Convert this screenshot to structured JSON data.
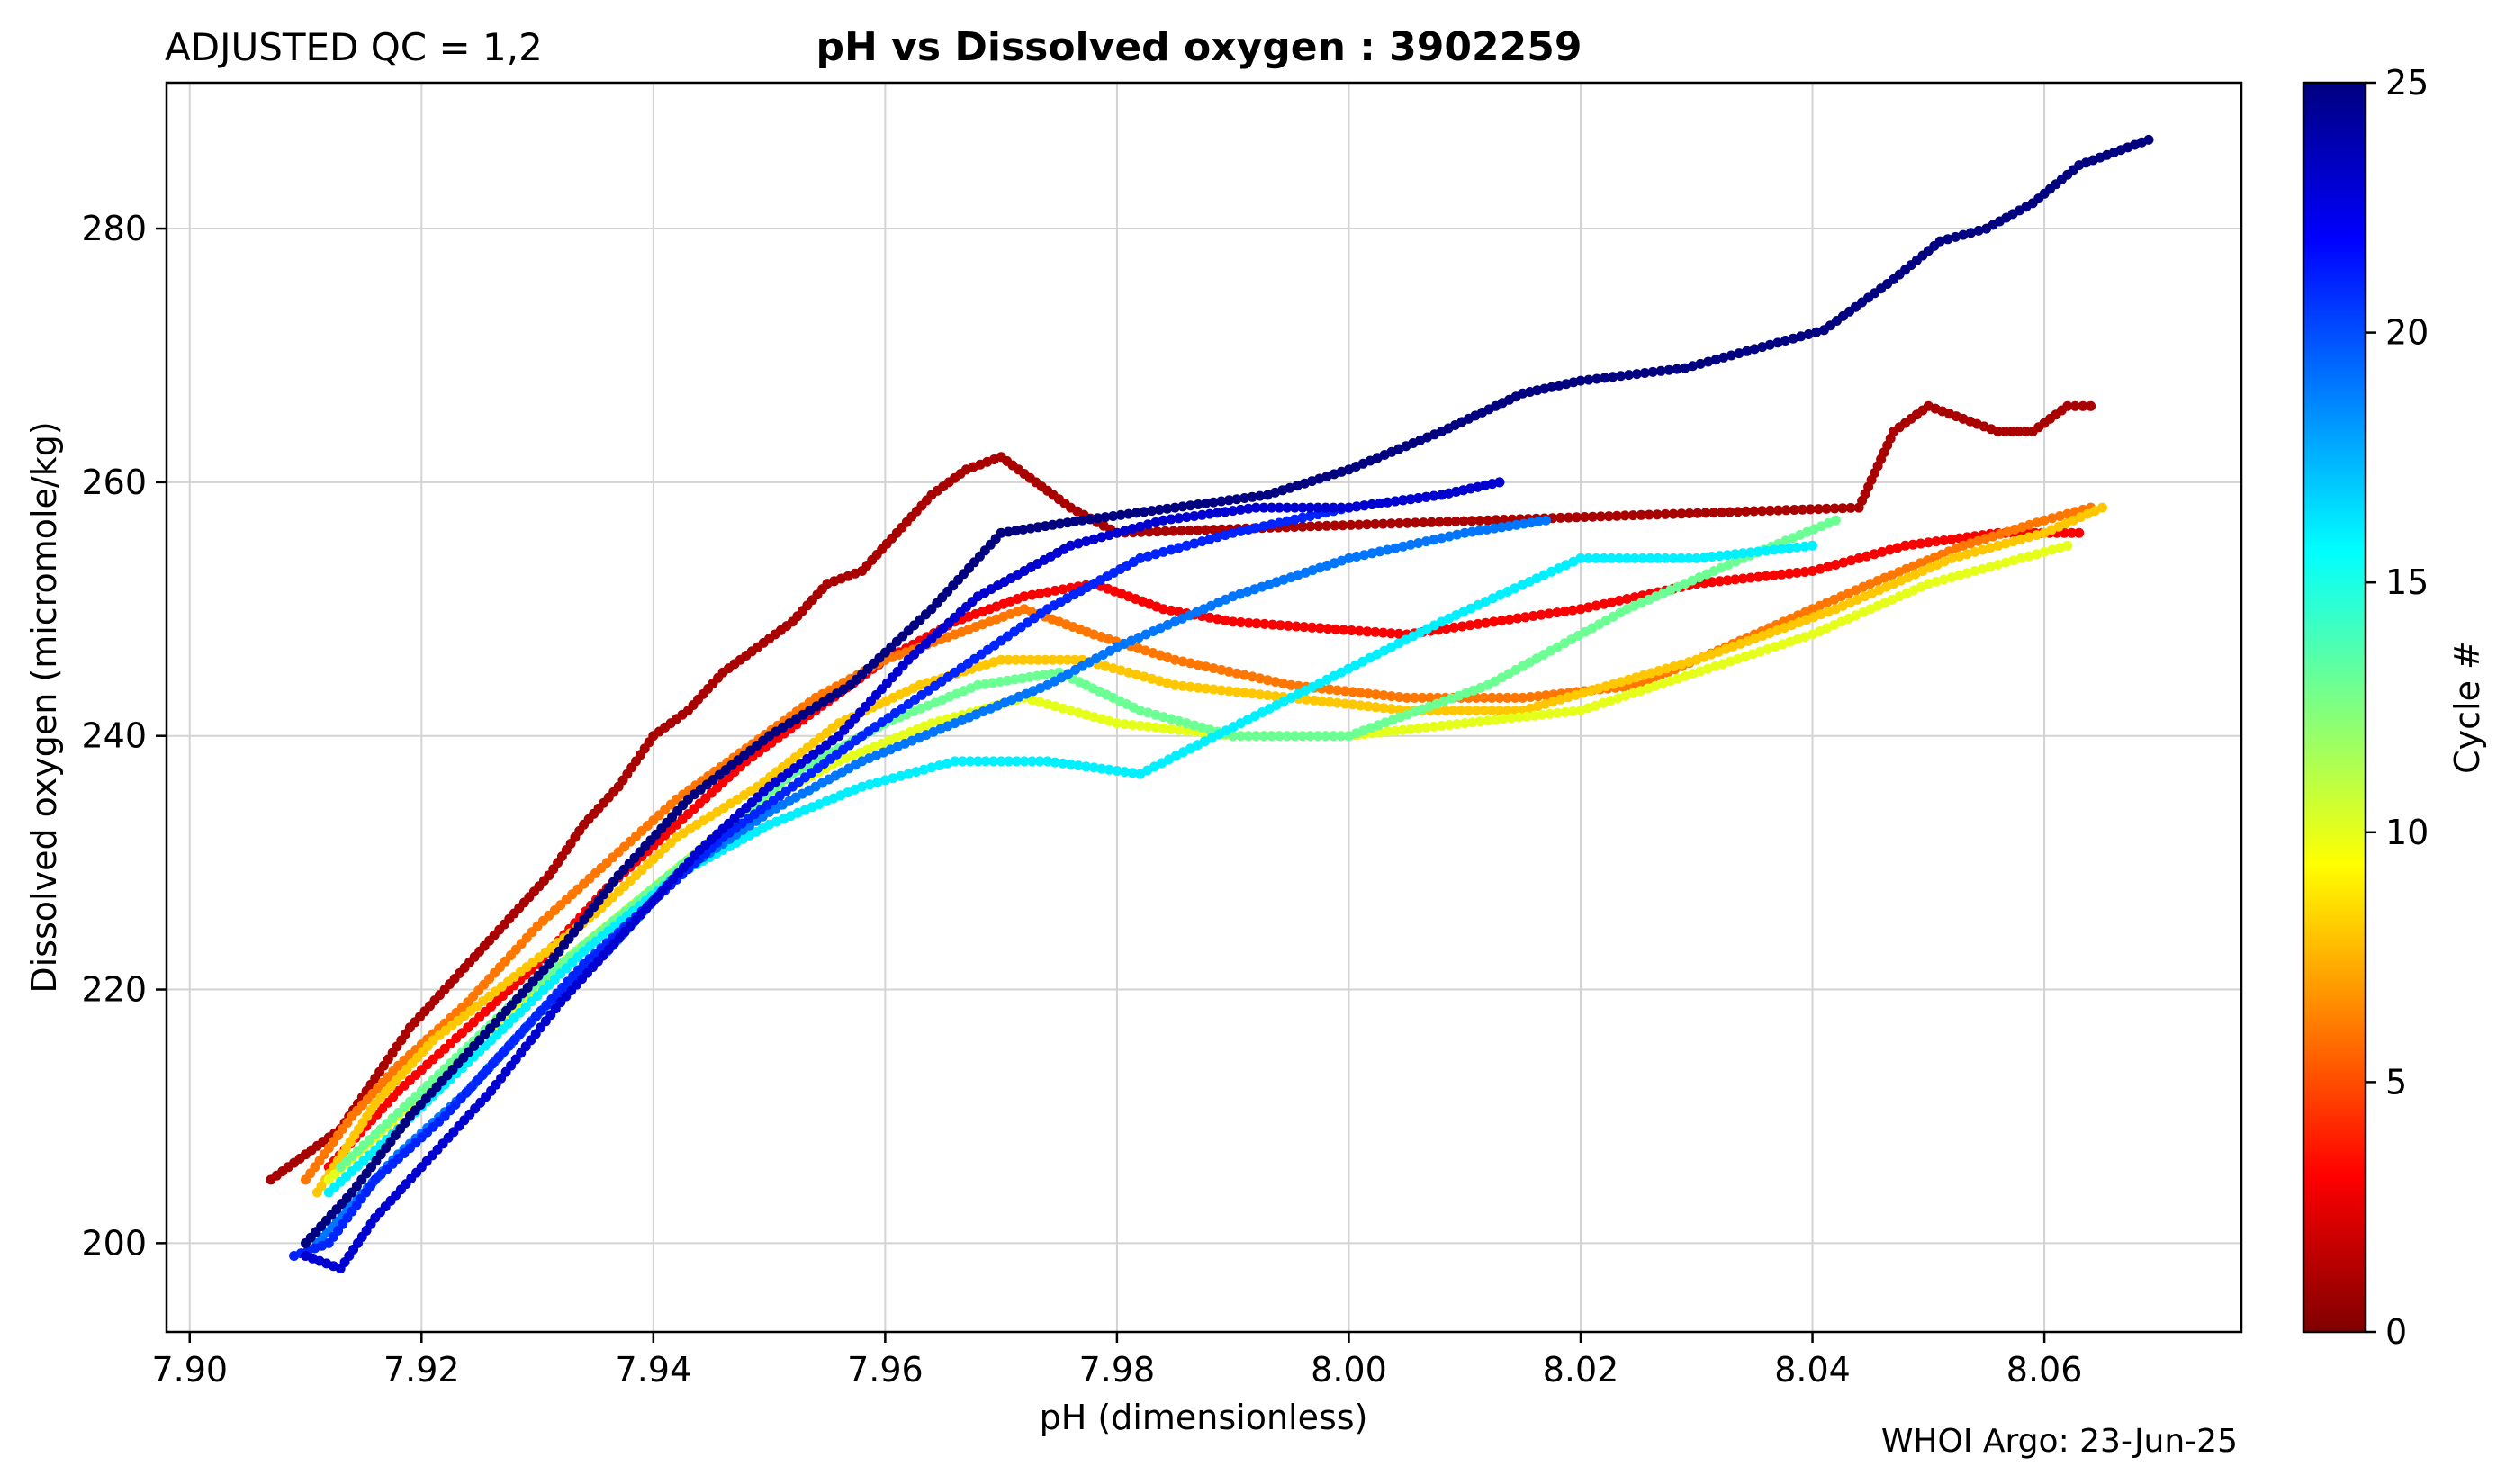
{
  "header": {
    "qc_label": "ADJUSTED QC = 1,2",
    "title": "pH vs Dissolved oxygen : 3902259"
  },
  "footer": {
    "credit": "WHOI Argo: 23-Jun-25"
  },
  "colors": {
    "gridline": "#d3d3d3",
    "colormap": "jet",
    "colormap_stops": [
      "#800000",
      "#ff0000",
      "#ff8000",
      "#ffff00",
      "#80ff80",
      "#00ffff",
      "#0080ff",
      "#0000ff",
      "#000080"
    ]
  },
  "chart_data": {
    "type": "scatter",
    "title": "pH vs Dissolved oxygen : 3902259",
    "xlabel": "pH  (dimensionless)",
    "ylabel": "Dissolved oxygen  (micromole/kg)",
    "xlim": [
      7.898,
      8.077
    ],
    "ylim": [
      193,
      291.5
    ],
    "xticks": [
      7.9,
      7.92,
      7.94,
      7.96,
      7.98,
      8.0,
      8.02,
      8.04,
      8.06
    ],
    "xtick_labels": [
      "7.90",
      "7.92",
      "7.94",
      "7.96",
      "7.98",
      "8.00",
      "8.02",
      "8.04",
      "8.06"
    ],
    "yticks": [
      200,
      220,
      240,
      260,
      280
    ],
    "ytick_labels": [
      "200",
      "220",
      "240",
      "260",
      "280"
    ],
    "grid": true,
    "colorbar": {
      "label": "Cycle #",
      "range": [
        0,
        25
      ],
      "ticks": [
        0,
        5,
        10,
        15,
        20,
        25
      ],
      "tick_labels": [
        "0",
        "5",
        "10",
        "15",
        "20",
        "25"
      ]
    },
    "series": [
      {
        "cycle": 1,
        "points": [
          [
            7.907,
            205
          ],
          [
            7.91,
            207
          ],
          [
            7.913,
            209
          ],
          [
            7.916,
            213
          ],
          [
            7.919,
            217
          ],
          [
            7.922,
            220
          ],
          [
            7.925,
            223
          ],
          [
            7.928,
            226
          ],
          [
            7.931,
            229
          ],
          [
            7.934,
            233
          ],
          [
            7.937,
            236
          ],
          [
            7.94,
            240
          ],
          [
            7.943,
            242
          ],
          [
            7.946,
            245
          ],
          [
            7.949,
            247
          ],
          [
            7.952,
            249
          ],
          [
            7.955,
            252
          ],
          [
            7.958,
            253
          ],
          [
            7.961,
            256
          ],
          [
            7.964,
            259
          ],
          [
            7.967,
            261
          ],
          [
            7.97,
            262
          ],
          [
            7.973,
            260
          ],
          [
            7.976,
            258
          ],
          [
            7.98,
            256
          ],
          [
            8.044,
            258
          ],
          [
            8.047,
            264
          ],
          [
            8.05,
            266
          ],
          [
            8.053,
            265
          ],
          [
            8.056,
            264
          ],
          [
            8.059,
            264
          ],
          [
            8.062,
            266
          ],
          [
            8.064,
            266
          ]
        ]
      },
      {
        "cycle": 3,
        "points": [
          [
            7.912,
            206
          ],
          [
            7.918,
            212
          ],
          [
            7.924,
            217
          ],
          [
            7.93,
            222
          ],
          [
            7.936,
            228
          ],
          [
            7.942,
            233
          ],
          [
            7.948,
            238
          ],
          [
            7.954,
            242
          ],
          [
            7.96,
            246
          ],
          [
            7.966,
            249
          ],
          [
            7.972,
            251
          ],
          [
            7.978,
            252
          ],
          [
            7.984,
            250
          ],
          [
            7.99,
            249
          ],
          [
            8.005,
            248
          ],
          [
            8.02,
            250
          ],
          [
            8.03,
            252
          ],
          [
            8.04,
            253
          ],
          [
            8.048,
            255
          ],
          [
            8.056,
            256
          ],
          [
            8.063,
            256
          ]
        ]
      },
      {
        "cycle": 6,
        "points": [
          [
            7.91,
            205
          ],
          [
            7.914,
            210
          ],
          [
            7.918,
            214
          ],
          [
            7.924,
            219
          ],
          [
            7.93,
            225
          ],
          [
            7.936,
            230
          ],
          [
            7.942,
            235
          ],
          [
            7.948,
            239
          ],
          [
            7.954,
            243
          ],
          [
            7.96,
            246
          ],
          [
            7.966,
            248
          ],
          [
            7.972,
            250
          ],
          [
            7.978,
            248
          ],
          [
            7.985,
            246
          ],
          [
            7.995,
            244
          ],
          [
            8.005,
            243
          ],
          [
            8.015,
            243
          ],
          [
            8.025,
            244
          ],
          [
            8.035,
            248
          ],
          [
            8.045,
            252
          ],
          [
            8.053,
            255
          ],
          [
            8.06,
            257
          ],
          [
            8.064,
            258
          ]
        ]
      },
      {
        "cycle": 8,
        "points": [
          [
            7.911,
            204
          ],
          [
            7.916,
            211
          ],
          [
            7.921,
            216
          ],
          [
            7.928,
            221
          ],
          [
            7.935,
            226
          ],
          [
            7.942,
            232
          ],
          [
            7.949,
            236
          ],
          [
            7.956,
            241
          ],
          [
            7.963,
            244
          ],
          [
            7.97,
            246
          ],
          [
            7.977,
            246
          ],
          [
            7.985,
            244
          ],
          [
            7.995,
            243
          ],
          [
            8.005,
            242
          ],
          [
            8.015,
            242
          ],
          [
            8.03,
            246
          ],
          [
            8.042,
            250
          ],
          [
            8.052,
            254
          ],
          [
            8.06,
            256
          ],
          [
            8.065,
            258
          ]
        ]
      },
      {
        "cycle": 10,
        "points": [
          [
            7.912,
            205
          ],
          [
            7.918,
            210
          ],
          [
            7.925,
            216
          ],
          [
            7.932,
            222
          ],
          [
            7.94,
            228
          ],
          [
            7.948,
            234
          ],
          [
            7.956,
            238
          ],
          [
            7.964,
            241
          ],
          [
            7.972,
            243
          ],
          [
            7.98,
            241
          ],
          [
            7.99,
            240
          ],
          [
            8.0,
            240
          ],
          [
            8.01,
            241
          ],
          [
            8.02,
            242
          ],
          [
            8.04,
            248
          ],
          [
            8.05,
            252
          ],
          [
            8.058,
            254
          ],
          [
            8.062,
            255
          ]
        ]
      },
      {
        "cycle": 13,
        "points": [
          [
            7.913,
            206
          ],
          [
            7.92,
            212
          ],
          [
            7.928,
            219
          ],
          [
            7.936,
            225
          ],
          [
            7.944,
            231
          ],
          [
            7.952,
            237
          ],
          [
            7.96,
            241
          ],
          [
            7.968,
            244
          ],
          [
            7.975,
            245
          ],
          [
            7.982,
            242
          ],
          [
            7.99,
            240
          ],
          [
            8.0,
            240
          ],
          [
            8.012,
            244
          ],
          [
            8.024,
            250
          ],
          [
            8.034,
            254
          ],
          [
            8.042,
            257
          ]
        ]
      },
      {
        "cycle": 16,
        "points": [
          [
            7.912,
            204
          ],
          [
            7.918,
            209
          ],
          [
            7.926,
            216
          ],
          [
            7.934,
            223
          ],
          [
            7.942,
            229
          ],
          [
            7.95,
            233
          ],
          [
            7.958,
            236
          ],
          [
            7.966,
            238
          ],
          [
            7.974,
            238
          ],
          [
            7.982,
            237
          ],
          [
            7.995,
            243
          ],
          [
            8.008,
            249
          ],
          [
            8.02,
            254
          ],
          [
            8.03,
            254
          ],
          [
            8.04,
            255
          ]
        ]
      },
      {
        "cycle": 19,
        "points": [
          [
            7.911,
            200
          ],
          [
            7.914,
            203
          ],
          [
            7.918,
            207
          ],
          [
            7.924,
            212
          ],
          [
            7.93,
            218
          ],
          [
            7.936,
            223
          ],
          [
            7.942,
            229
          ],
          [
            7.95,
            234
          ],
          [
            7.958,
            238
          ],
          [
            7.966,
            241
          ],
          [
            7.974,
            244
          ],
          [
            7.98,
            247
          ],
          [
            7.99,
            251
          ],
          [
            8.0,
            254
          ],
          [
            8.01,
            256
          ],
          [
            8.017,
            257
          ]
        ]
      },
      {
        "cycle": 21,
        "points": [
          [
            7.909,
            199
          ],
          [
            7.912,
            200
          ],
          [
            7.916,
            205
          ],
          [
            7.922,
            210
          ],
          [
            7.928,
            216
          ],
          [
            7.934,
            222
          ],
          [
            7.94,
            227
          ],
          [
            7.946,
            232
          ],
          [
            7.952,
            236
          ],
          [
            7.958,
            240
          ],
          [
            7.966,
            245
          ],
          [
            7.974,
            250
          ],
          [
            7.982,
            254
          ],
          [
            7.99,
            256
          ],
          [
            8.0,
            258
          ],
          [
            8.008,
            259
          ],
          [
            8.013,
            260
          ]
        ]
      },
      {
        "cycle": 23,
        "points": [
          [
            7.91,
            199
          ],
          [
            7.913,
            198
          ],
          [
            7.916,
            202
          ],
          [
            7.92,
            206
          ],
          [
            7.926,
            212
          ],
          [
            7.932,
            219
          ],
          [
            7.938,
            225
          ],
          [
            7.944,
            231
          ],
          [
            7.95,
            236
          ],
          [
            7.956,
            240
          ],
          [
            7.962,
            246
          ],
          [
            7.968,
            251
          ],
          [
            7.976,
            255
          ],
          [
            7.984,
            257
          ],
          [
            7.992,
            258
          ],
          [
            8.0,
            258
          ],
          [
            8.008,
            259
          ],
          [
            8.013,
            260
          ]
        ]
      },
      {
        "cycle": 25,
        "points": [
          [
            7.91,
            200
          ],
          [
            7.914,
            204
          ],
          [
            7.919,
            210
          ],
          [
            7.925,
            216
          ],
          [
            7.931,
            222
          ],
          [
            7.937,
            229
          ],
          [
            7.943,
            235
          ],
          [
            7.95,
            240
          ],
          [
            7.957,
            244
          ],
          [
            7.964,
            250
          ],
          [
            7.97,
            256
          ],
          [
            7.977,
            257
          ],
          [
            7.985,
            258
          ],
          [
            7.993,
            259
          ],
          [
            8.0,
            261
          ],
          [
            8.008,
            264
          ],
          [
            8.015,
            267
          ],
          [
            8.02,
            268
          ],
          [
            8.029,
            269
          ],
          [
            8.041,
            272
          ],
          [
            8.047,
            276
          ],
          [
            8.051,
            279
          ],
          [
            8.055,
            280
          ],
          [
            8.059,
            282
          ],
          [
            8.063,
            285
          ],
          [
            8.066,
            286
          ],
          [
            8.069,
            287
          ]
        ]
      }
    ]
  }
}
